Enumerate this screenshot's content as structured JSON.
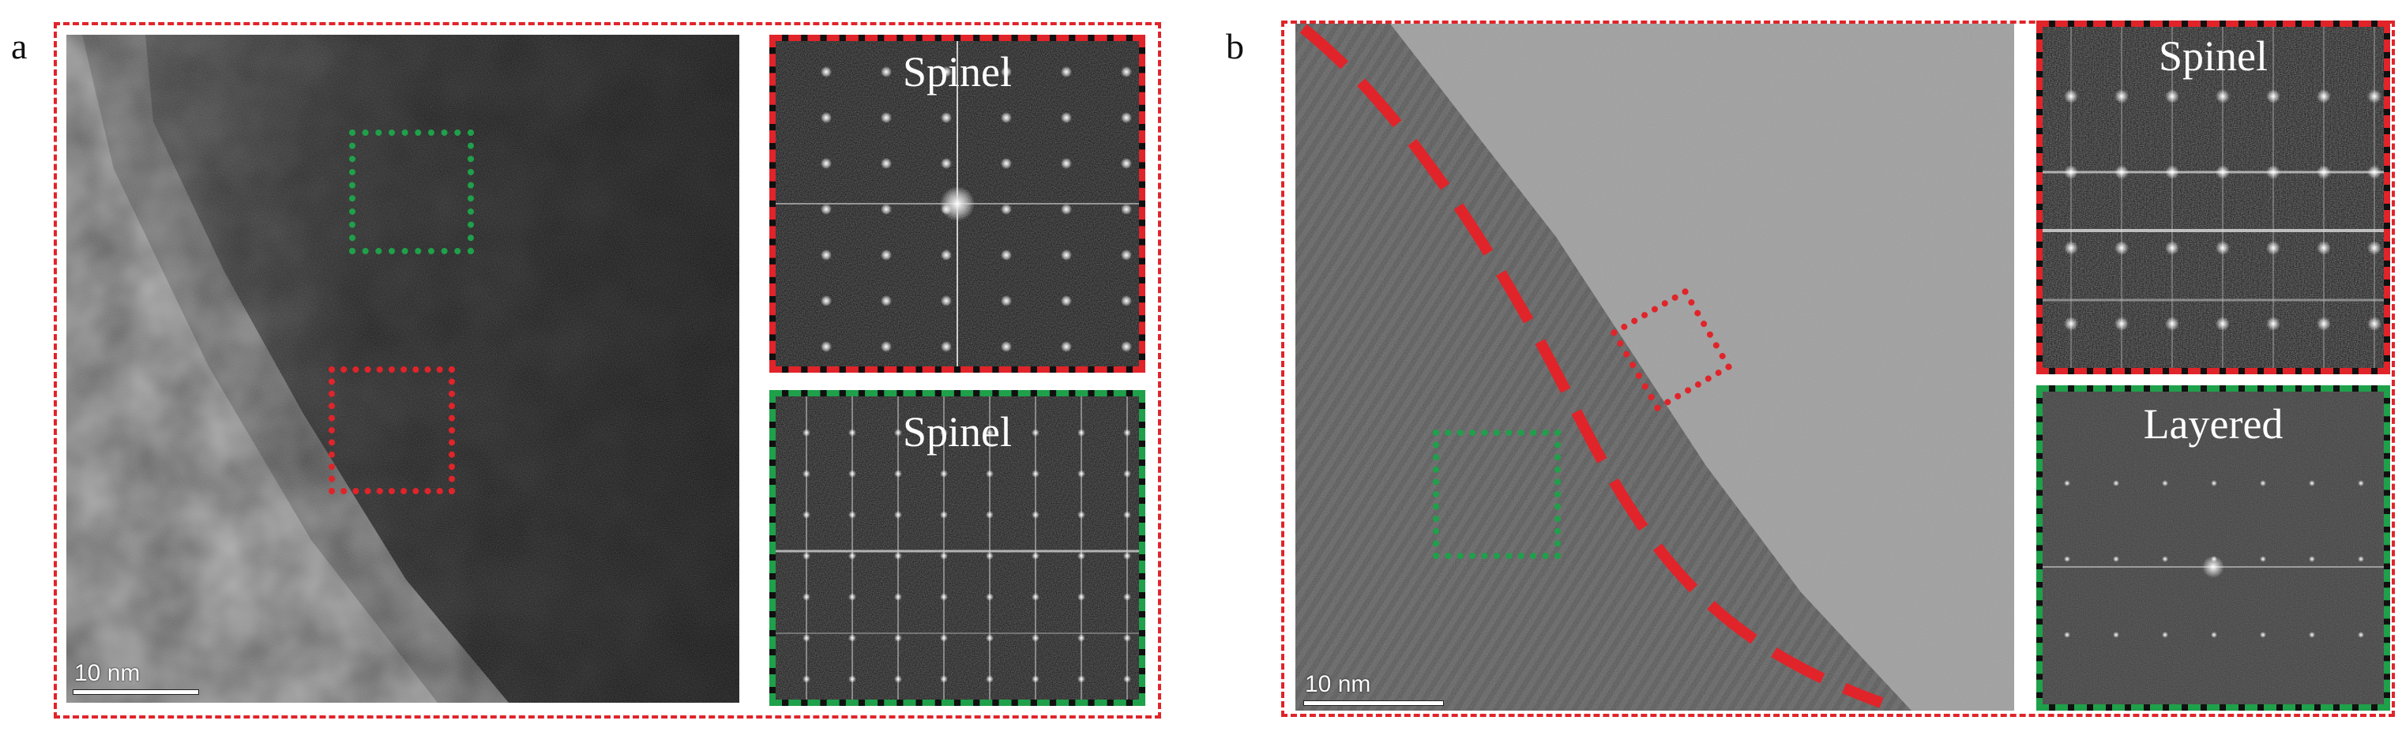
{
  "panels": [
    {
      "letter": "a",
      "scale_label": "10 nm",
      "fft_top_label": "Spinel",
      "fft_bottom_label": "Spinel"
    },
    {
      "letter": "b",
      "scale_label": "10 nm",
      "fft_top_label": "Spinel",
      "fft_bottom_label": "Layered"
    }
  ],
  "colors": {
    "frame": "#e0242a",
    "surface_region": "#e0242a",
    "bulk_region": "#1fa04a"
  }
}
